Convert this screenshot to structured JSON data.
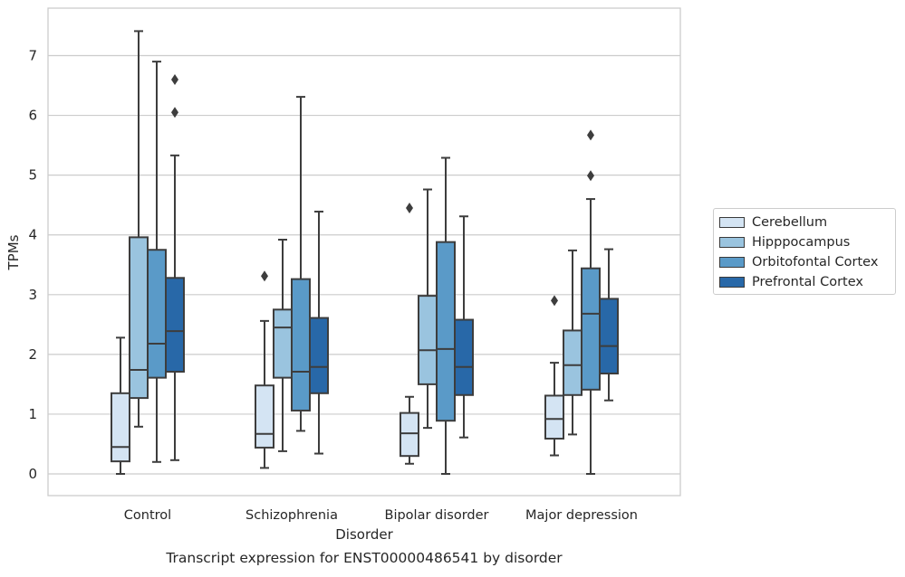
{
  "chart_data": {
    "type": "box",
    "title": "Transcript expression for ENST00000486541 by disorder",
    "xlabel": "Disorder",
    "ylabel": "TPMs",
    "ylim": [
      -0.35,
      7.8
    ],
    "yticks": [
      0,
      1,
      2,
      3,
      4,
      5,
      6,
      7
    ],
    "grid": "horizontal",
    "legend_position": "right, outside plot",
    "categories": [
      "Control",
      "Schizophrenia",
      "Bipolar disorder",
      "Major depression"
    ],
    "series": [
      {
        "name": "Cerebellum",
        "color": "#d4e4f3",
        "boxes": [
          {
            "whislo": 0.0,
            "q1": 0.21,
            "med": 0.45,
            "q3": 1.35,
            "whishi": 2.28,
            "fliers": []
          },
          {
            "whislo": 0.1,
            "q1": 0.44,
            "med": 0.67,
            "q3": 1.48,
            "whishi": 2.56,
            "fliers": [
              3.31
            ]
          },
          {
            "whislo": 0.17,
            "q1": 0.3,
            "med": 0.68,
            "q3": 1.02,
            "whishi": 1.29,
            "fliers": [
              4.45
            ]
          },
          {
            "whislo": 0.31,
            "q1": 0.59,
            "med": 0.92,
            "q3": 1.31,
            "whishi": 1.86,
            "fliers": [
              2.9
            ]
          }
        ]
      },
      {
        "name": "Hipppocampus",
        "color": "#9ac4df",
        "boxes": [
          {
            "whislo": 0.79,
            "q1": 1.27,
            "med": 1.74,
            "q3": 3.96,
            "whishi": 7.41,
            "fliers": []
          },
          {
            "whislo": 0.38,
            "q1": 1.61,
            "med": 2.45,
            "q3": 2.75,
            "whishi": 3.92,
            "fliers": []
          },
          {
            "whislo": 0.77,
            "q1": 1.5,
            "med": 2.07,
            "q3": 2.98,
            "whishi": 4.76,
            "fliers": []
          },
          {
            "whislo": 0.66,
            "q1": 1.32,
            "med": 1.82,
            "q3": 2.4,
            "whishi": 3.74,
            "fliers": []
          }
        ]
      },
      {
        "name": "Orbitofontal Cortex",
        "color": "#5a9ac8",
        "boxes": [
          {
            "whislo": 0.2,
            "q1": 1.61,
            "med": 2.18,
            "q3": 3.75,
            "whishi": 6.9,
            "fliers": []
          },
          {
            "whislo": 0.72,
            "q1": 1.06,
            "med": 1.71,
            "q3": 3.26,
            "whishi": 6.31,
            "fliers": []
          },
          {
            "whislo": 0.0,
            "q1": 0.89,
            "med": 2.09,
            "q3": 3.88,
            "whishi": 5.29,
            "fliers": []
          },
          {
            "whislo": 0.0,
            "q1": 1.41,
            "med": 2.68,
            "q3": 3.44,
            "whishi": 4.6,
            "fliers": [
              4.99,
              5.67
            ]
          }
        ]
      },
      {
        "name": "Prefrontal Cortex",
        "color": "#2868a8",
        "boxes": [
          {
            "whislo": 0.23,
            "q1": 1.71,
            "med": 2.39,
            "q3": 3.28,
            "whishi": 5.33,
            "fliers": [
              6.05,
              6.6
            ]
          },
          {
            "whislo": 0.34,
            "q1": 1.35,
            "med": 1.79,
            "q3": 2.61,
            "whishi": 4.39,
            "fliers": []
          },
          {
            "whislo": 0.61,
            "q1": 1.32,
            "med": 1.79,
            "q3": 2.58,
            "whishi": 4.31,
            "fliers": []
          },
          {
            "whislo": 1.23,
            "q1": 1.68,
            "med": 2.14,
            "q3": 2.93,
            "whishi": 3.76,
            "fliers": []
          }
        ]
      }
    ]
  }
}
